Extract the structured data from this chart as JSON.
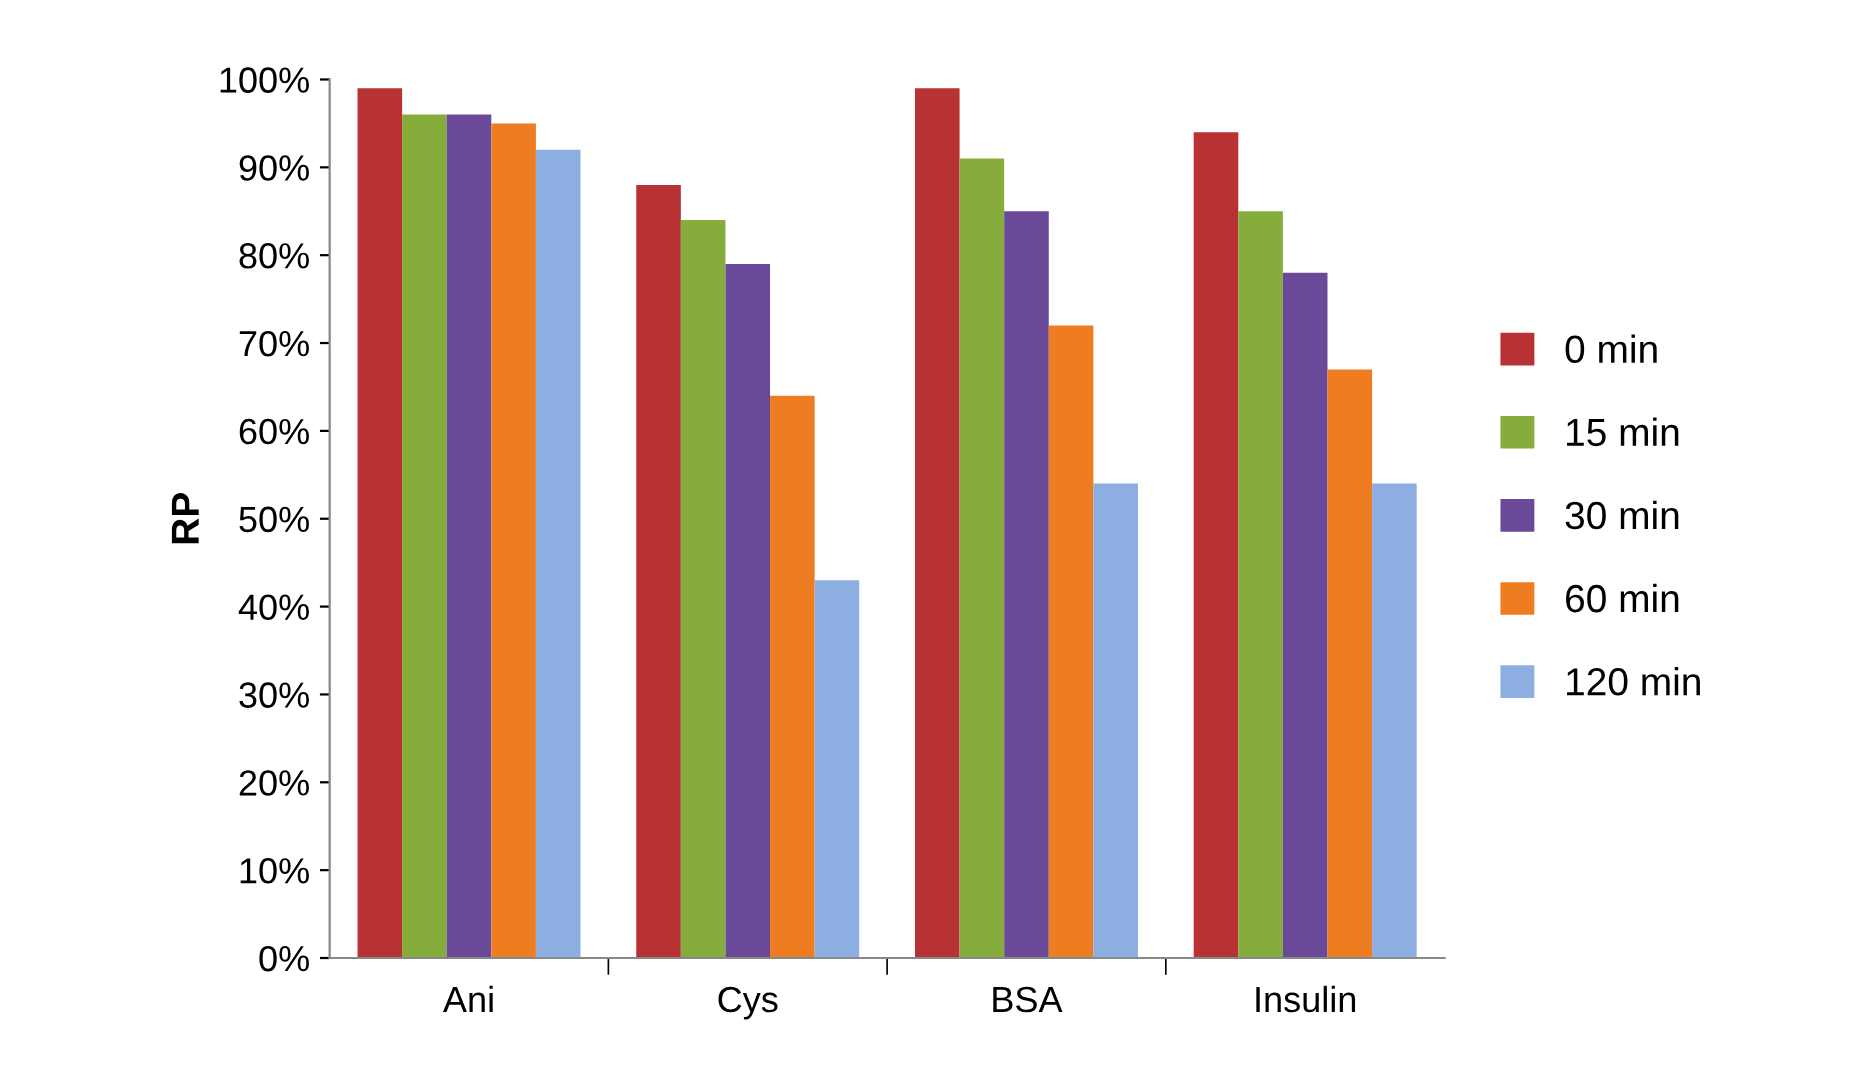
{
  "chart_data": {
    "type": "bar",
    "ylabel": "RP",
    "categories": [
      "Ani",
      "Cys",
      "BSA",
      "Insulin"
    ],
    "series": [
      {
        "name": "0 min",
        "color": "#b83234",
        "values": [
          99,
          88,
          99,
          94
        ]
      },
      {
        "name": "15 min",
        "color": "#86ad3c",
        "values": [
          96,
          84,
          91,
          85
        ]
      },
      {
        "name": "30 min",
        "color": "#6a4a98",
        "values": [
          96,
          79,
          85,
          78
        ]
      },
      {
        "name": "60 min",
        "color": "#ee7d22",
        "values": [
          95,
          64,
          72,
          67
        ]
      },
      {
        "name": "120 min",
        "color": "#8caee0",
        "values": [
          92,
          43,
          54,
          54
        ]
      }
    ],
    "ylim": [
      0,
      100
    ],
    "yticks": [
      {
        "value": 0,
        "label": "0%"
      },
      {
        "value": 10,
        "label": "10%"
      },
      {
        "value": 20,
        "label": "20%"
      },
      {
        "value": 30,
        "label": "30%"
      },
      {
        "value": 40,
        "label": "40%"
      },
      {
        "value": 50,
        "label": "50%"
      },
      {
        "value": 60,
        "label": "60%"
      },
      {
        "value": 70,
        "label": "70%"
      },
      {
        "value": 80,
        "label": "80%"
      },
      {
        "value": 90,
        "label": "90%"
      },
      {
        "value": 100,
        "label": "100%"
      }
    ],
    "grid": false,
    "legend": "right"
  }
}
